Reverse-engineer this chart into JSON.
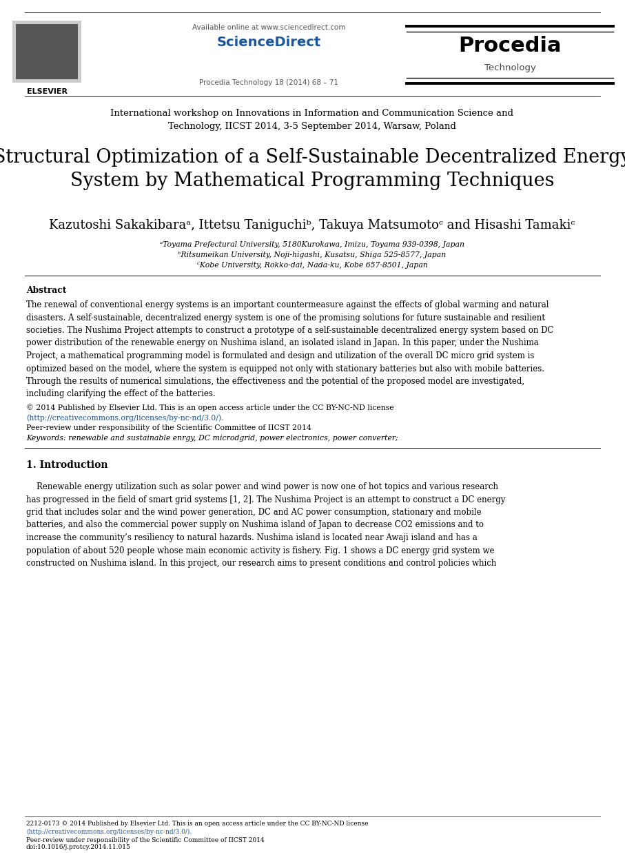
{
  "bg_color": "#ffffff",
  "sciencedirect_label": "Available online at www.sciencedirect.com",
  "sciencedirect_brand": "ScienceDirect",
  "procedia_brand": "Procedia",
  "procedia_sub": "Technology",
  "journal_info": "Procedia Technology 18 (2014) 68 – 71",
  "conference_text": "International workshop on Innovations in Information and Communication Science and\nTechnology, IICST 2014, 3-5 September 2014, Warsaw, Poland",
  "conference_fontsize": 9.5,
  "title_text": "Structural Optimization of a Self-Sustainable Decentralized Energy\nSystem by Mathematical Programming Techniques",
  "title_fontsize": 19.5,
  "authors_text": "Kazutoshi Sakakibaraᵃ, Ittetsu Taniguchiᵇ, Takuya Matsumotoᶜ and Hisashi Tamakiᶜ",
  "authors_fontsize": 13,
  "affil1": "ᵃToyama Prefectural University, 5180Kurokawa, Imizu, Toyama 939-0398, Japan",
  "affil2": "ᵇRitsumeikan University, Noji-higashi, Kusatsu, Shiga 525-8577, Japan",
  "affil3": "ᶜKobe University, Rokko-dai, Nada-ku, Kobe 657-8501, Japan",
  "affil_fontsize": 7.8,
  "abstract_title": "Abstract",
  "abstract_body": "The renewal of conventional energy systems is an important countermeasure against the effects of global warming and natural\ndisasters. A self-sustainable, decentralized energy system is one of the promising solutions for future sustainable and resilient\nsocieties. The Nushima Project attempts to construct a prototype of a self-sustainable decentralized energy system based on DC\npower distribution of the renewable energy on Nushima island, an isolated island in Japan. In this paper, under the Nushima\nProject, a mathematical programming model is formulated and design and utilization of the overall DC micro grid system is\noptimized based on the model, where the system is equipped not only with stationary batteries but also with mobile batteries.\nThrough the results of numerical simulations, the effectiveness and the potential of the proposed model are investigated,\nincluding clarifying the effect of the batteries.",
  "abstract_fontsize": 8.5,
  "copyright_text": "© 2014 Published by Elsevier Ltd. This is an open access article under the CC BY-NC-ND license",
  "link_text": "(http://creativecommons.org/licenses/by-nc-nd/3.0/).",
  "peer_review_text": "Peer-review under responsibility of the Scientific Committee of IICST 2014",
  "keywords_text": "Keywords: renewable and sustainable enrgy, DC microdgrid, power electronics, power converter;",
  "section1_title": "1. Introduction",
  "intro_text": "    Renewable energy utilization such as solar power and wind power is now one of hot topics and various research\nhas progressed in the field of smart grid systems [1, 2]. The Nushima Project is an attempt to construct a DC energy\ngrid that includes solar and the wind power generation, DC and AC power consumption, stationary and mobile\nbatteries, and also the commercial power supply on Nushima island of Japan to decrease CO2 emissions and to\nincrease the community’s resiliency to natural hazards. Nushima island is located near Awaji island and has a\npopulation of about 520 people whose main economic activity is fishery. Fig. 1 shows a DC energy grid system we\nconstructed on Nushima island. In this project, our research aims to present conditions and control policies which",
  "intro_fontsize": 8.5,
  "footer_text1": "2212-0173 © 2014 Published by Elsevier Ltd. This is an open access article under the CC BY-NC-ND license",
  "footer_link": "(http://creativecommons.org/licenses/by-nc-nd/3.0/).",
  "footer_text2": "Peer-review under responsibility of the Scientific Committee of IICST 2014",
  "footer_text3": "doi:10.1016/j.protcy.2014.11.015",
  "elsevier_text": "ELSEVIER"
}
